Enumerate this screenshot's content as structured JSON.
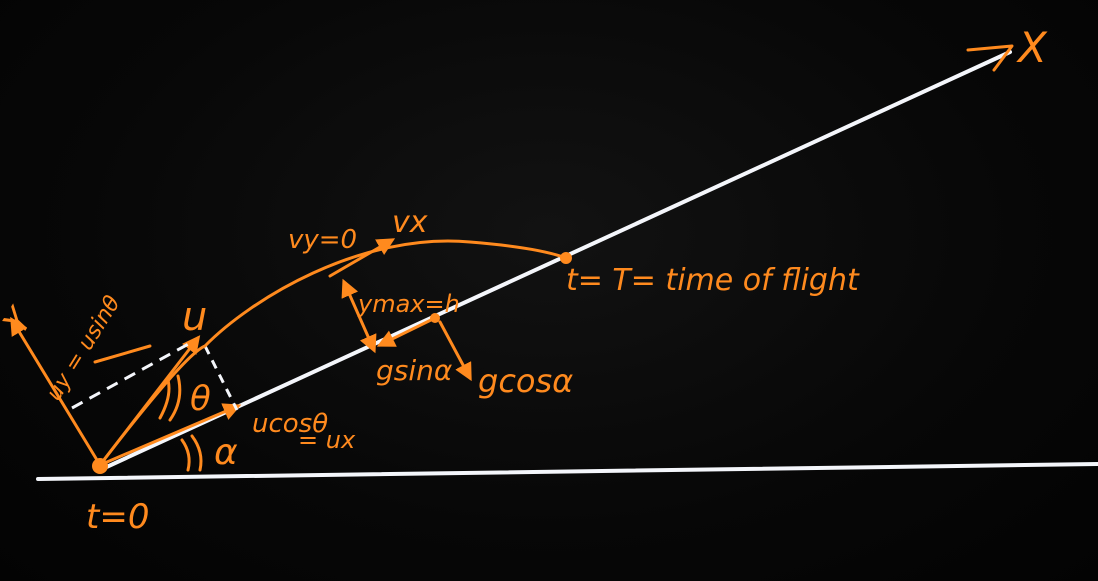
{
  "colors": {
    "board": "#050505",
    "chalk_orange": "#ff8a1e",
    "chalk_white": "#f4f6fb"
  },
  "labels": {
    "x_axis": "X",
    "y_axis": "Y",
    "u": "u",
    "uy_eq": "uy = usinθ",
    "theta": "θ",
    "alpha": "α",
    "ucos": "ucosθ",
    "ux_eq": "= ux",
    "t0": "t=0",
    "vy0": "vy=0",
    "vx": "vx",
    "ymax": "ymax=h",
    "gsin": "gsinα",
    "gcos": "gcosα",
    "tT": "t= T= time of flight"
  }
}
